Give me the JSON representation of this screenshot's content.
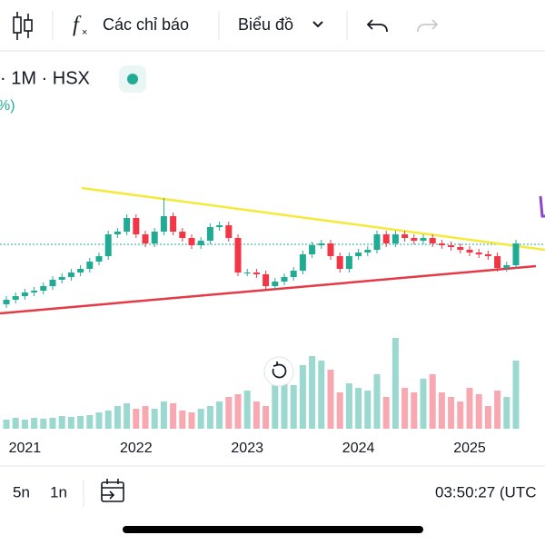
{
  "toolbar": {
    "indicators": "Các chỉ báo",
    "chart_menu": "Biểu đồ"
  },
  "symbol": {
    "info": "· 1M · HSX",
    "change": "%)"
  },
  "bottom_bar": {
    "range_5y": "5n",
    "range_1y": "1n",
    "clock": "03:50:27 (UTC"
  },
  "chart_data": {
    "type": "candlestick",
    "categories": [
      null,
      null,
      "2021",
      null,
      null,
      null,
      null,
      null,
      null,
      null,
      null,
      null,
      null,
      null,
      "2022",
      null,
      null,
      null,
      null,
      null,
      null,
      null,
      null,
      null,
      null,
      null,
      "2023",
      null,
      null,
      null,
      null,
      null,
      null,
      null,
      null,
      null,
      null,
      null,
      "2024",
      null,
      null,
      null,
      null,
      null,
      null,
      null,
      null,
      null,
      null,
      null,
      "2025",
      null,
      null,
      null,
      null,
      null
    ],
    "open": [
      10,
      15,
      19,
      23,
      25,
      30,
      37,
      40,
      45,
      49,
      57,
      63,
      87,
      90,
      105,
      87,
      77,
      90,
      107,
      90,
      83,
      75,
      80,
      95,
      97,
      83,
      45,
      45,
      43,
      30,
      35,
      40,
      47,
      65,
      75,
      77,
      63,
      49,
      63,
      67,
      70,
      87,
      77,
      87,
      83,
      80,
      83,
      77,
      75,
      73,
      70,
      67,
      65,
      63,
      50,
      53
    ],
    "high": [
      19,
      23,
      27,
      29,
      34,
      41,
      44,
      49,
      53,
      61,
      67,
      91,
      94,
      109,
      109,
      91,
      94,
      127,
      111,
      94,
      87,
      84,
      99,
      101,
      101,
      87,
      49,
      49,
      47,
      39,
      44,
      51,
      69,
      79,
      81,
      81,
      67,
      67,
      71,
      74,
      91,
      91,
      91,
      91,
      87,
      87,
      87,
      81,
      79,
      77,
      74,
      71,
      69,
      67,
      57,
      81
    ],
    "low": [
      6,
      11,
      15,
      19,
      21,
      26,
      33,
      36,
      41,
      45,
      53,
      59,
      83,
      86,
      83,
      73,
      73,
      86,
      86,
      79,
      71,
      71,
      76,
      91,
      79,
      41,
      41,
      39,
      26,
      26,
      31,
      36,
      43,
      61,
      71,
      59,
      45,
      45,
      59,
      63,
      66,
      73,
      73,
      79,
      76,
      76,
      73,
      71,
      69,
      66,
      63,
      61,
      59,
      46,
      46,
      49
    ],
    "close": [
      15,
      19,
      23,
      25,
      30,
      37,
      40,
      45,
      49,
      57,
      63,
      87,
      90,
      105,
      87,
      77,
      90,
      107,
      90,
      83,
      75,
      80,
      95,
      97,
      83,
      45,
      45,
      43,
      30,
      35,
      40,
      47,
      65,
      75,
      77,
      63,
      49,
      63,
      67,
      70,
      87,
      77,
      87,
      83,
      80,
      83,
      77,
      75,
      73,
      70,
      67,
      65,
      63,
      50,
      53,
      77
    ],
    "volume": [
      10,
      12,
      10,
      12,
      11,
      12,
      14,
      13,
      14,
      15,
      18,
      20,
      25,
      28,
      22,
      25,
      22,
      30,
      28,
      20,
      18,
      22,
      25,
      30,
      35,
      38,
      42,
      30,
      25,
      50,
      55,
      48,
      70,
      80,
      75,
      65,
      40,
      50,
      45,
      42,
      60,
      35,
      100,
      45,
      40,
      55,
      60,
      40,
      35,
      30,
      45,
      38,
      25,
      42,
      35,
      75
    ],
    "ylim": [
      0,
      150
    ],
    "volume_lim": [
      0,
      100
    ],
    "up_color": "#22ab94",
    "down_color": "#f23645",
    "volume_up_color": "#9ad8d0",
    "volume_down_color": "#f7a8b0"
  }
}
